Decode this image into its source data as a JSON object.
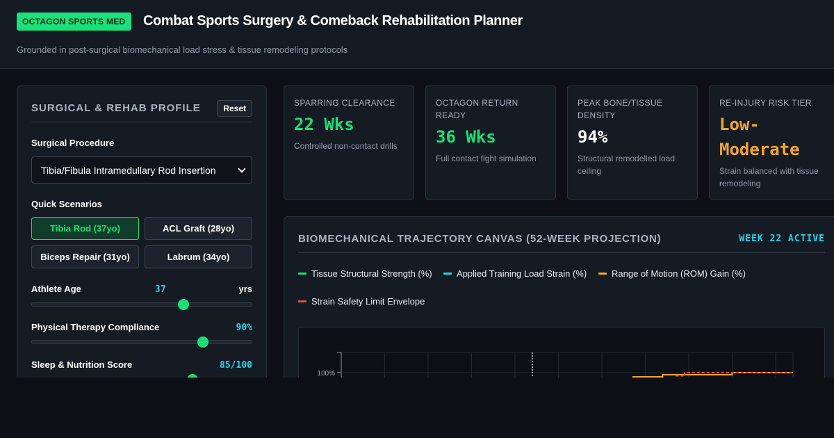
{
  "header": {
    "brand": "OCTAGON SPORTS MED",
    "title": "Combat Sports Surgery & Comeback Rehabilitation Planner",
    "subtitle": "Grounded in post-surgical biomechanical load stress & tissue remodeling protocols"
  },
  "profile": {
    "title": "SURGICAL & REHAB PROFILE",
    "reset_label": "Reset",
    "procedure_label": "Surgical Procedure",
    "procedure_value": "Tibia/Fibula Intramedullary Rod Insertion",
    "scenarios_label": "Quick Scenarios",
    "scenarios": [
      {
        "label": "Tibia Rod (37yo)",
        "active": true
      },
      {
        "label": "ACL Graft (28yo)",
        "active": false
      },
      {
        "label": "Biceps Repair (31yo)",
        "active": false
      },
      {
        "label": "Labrum (34yo)",
        "active": false
      }
    ],
    "age": {
      "label": "Athlete Age",
      "value": "37",
      "unit": "yrs",
      "fraction": 0.69
    },
    "compliance": {
      "label": "Physical Therapy Compliance",
      "value": "90%",
      "fraction": 0.78
    },
    "sleep": {
      "label": "Sleep & Nutrition Score",
      "value": "85/100",
      "fraction": 0.73
    }
  },
  "metrics": [
    {
      "label": "SPARRING CLEARANCE",
      "value": "22 Wks",
      "desc": "Controlled non-contact drills",
      "color": "#19e07a"
    },
    {
      "label": "OCTAGON RETURN READY",
      "value": "36 Wks",
      "desc": "Full contact fight simulation",
      "color": "#19e07a"
    },
    {
      "label": "PEAK BONE/TISSUE DENSITY",
      "value": "94%",
      "desc": "Structural remodelled load ceiling",
      "color": "#ffffff"
    },
    {
      "label": "RE-INJURY RISK TIER",
      "value": "Low-Moderate",
      "desc": "Strain balanced with tissue remodeling",
      "color": "#f5a623"
    }
  ],
  "canvas": {
    "title": "BIOMECHANICAL TRAJECTORY CANVAS (52-WEEK PROJECTION)",
    "week_active": "WEEK 22 ACTIVE"
  },
  "chart_data": {
    "type": "line",
    "xlabel": "",
    "ylabel": "",
    "y_tick_labels": [
      "100%"
    ],
    "x_range": [
      0,
      52
    ],
    "current_week": 22,
    "grid": true,
    "legend_position": "top",
    "series": [
      {
        "name": "Tissue Structural Strength (%)",
        "color": "#19e07a",
        "x": [],
        "y": []
      },
      {
        "name": "Applied Training Load Strain (%)",
        "color": "#22d3ee",
        "x": [],
        "y": []
      },
      {
        "name": "Range of Motion (ROM) Gain (%)",
        "color": "#f5a623",
        "x": [
          33.5,
          36,
          37,
          44,
          45,
          52
        ],
        "y": [
          96,
          96,
          98,
          98,
          100,
          100
        ]
      },
      {
        "name": "Strain Safety Limit Envelope",
        "color": "#e5484d",
        "x": [
          38.5,
          39.5,
          41,
          52
        ],
        "y": [
          97,
          100,
          100,
          100
        ]
      }
    ]
  }
}
